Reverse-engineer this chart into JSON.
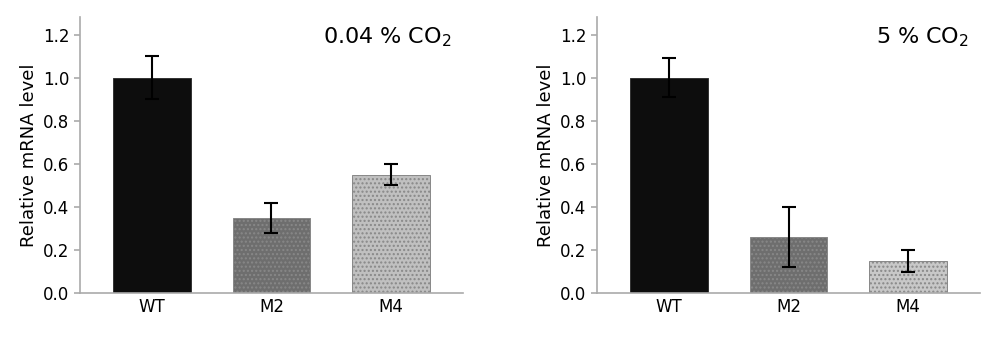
{
  "left_chart": {
    "title": "0.04 % CO$_2$",
    "categories": [
      "WT",
      "M2",
      "M4"
    ],
    "values": [
      1.0,
      0.35,
      0.55
    ],
    "errors": [
      0.1,
      0.07,
      0.05
    ],
    "bar_colors": [
      "#0d0d0d",
      "#6e6e6e",
      "#c0c0c0"
    ],
    "bar_hatches": [
      "",
      "....",
      "...."
    ]
  },
  "right_chart": {
    "title": "5 % CO$_2$",
    "categories": [
      "WT",
      "M2",
      "M4"
    ],
    "values": [
      1.0,
      0.26,
      0.15
    ],
    "errors": [
      0.09,
      0.14,
      0.05
    ],
    "bar_colors": [
      "#0d0d0d",
      "#6e6e6e",
      "#c8c8c8"
    ],
    "bar_hatches": [
      "",
      "....",
      "...."
    ]
  },
  "ylabel": "Relative mRNA level",
  "ylim": [
    0.0,
    1.28
  ],
  "yticks": [
    0.0,
    0.2,
    0.4,
    0.6,
    0.8,
    1.0,
    1.2
  ],
  "background_color": "#ffffff",
  "spine_color": "#aaaaaa",
  "tick_fontsize": 12,
  "label_fontsize": 13,
  "title_fontsize": 16,
  "bar_width": 0.65
}
